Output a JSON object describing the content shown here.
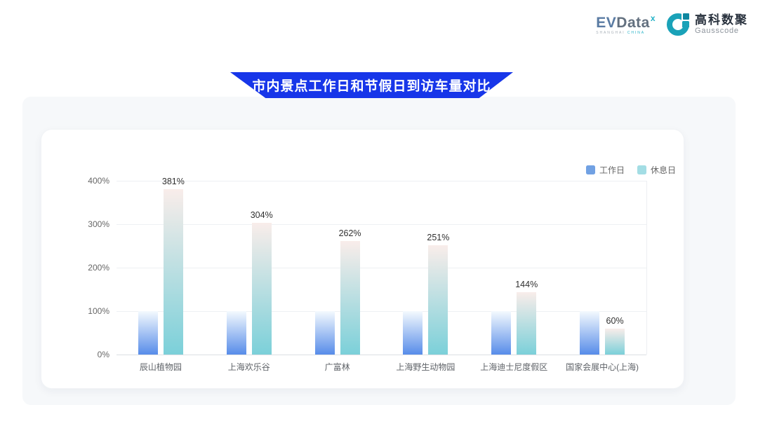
{
  "theme": {
    "banner_blue": "#1736e9",
    "brand_teal": "#1aa2b8"
  },
  "logo": {
    "evdata": {
      "ev": "EV",
      "data": "Data",
      "sup": "x",
      "caption_left": "SHANGHAI",
      "caption_right": "CHINA"
    },
    "gausscode": {
      "cn": "高科数聚",
      "en": "Gausscode"
    }
  },
  "banner": {
    "title": "市内景点工作日和节假日到访车量对比"
  },
  "chart_data": {
    "type": "bar",
    "title": "市内景点工作日和节假日到访车量对比",
    "categories": [
      "辰山植物园",
      "上海欢乐谷",
      "广富林",
      "上海野生动物园",
      "上海迪士尼度假区",
      "国家会展中心(上海)"
    ],
    "series": [
      {
        "name": "工作日",
        "values": [
          100,
          100,
          100,
          100,
          100,
          100
        ]
      },
      {
        "name": "休息日",
        "values": [
          381,
          304,
          262,
          251,
          144,
          60
        ]
      }
    ],
    "value_labels": [
      "381%",
      "304%",
      "262%",
      "251%",
      "144%",
      "60%"
    ],
    "xlabel": "",
    "ylabel": "",
    "yticks": [
      "0%",
      "100%",
      "200%",
      "300%",
      "400%"
    ],
    "ylim": [
      0,
      400
    ],
    "grid": true,
    "legend_position": "top-right",
    "colors": {
      "legend": [
        "#71a1e3",
        "#a3dde4"
      ],
      "workday_top": "#f4fafe",
      "workday_bottom": "#578ce9",
      "restday_top": "#f9edea",
      "restday_bottom": "#7bd0d9"
    }
  }
}
